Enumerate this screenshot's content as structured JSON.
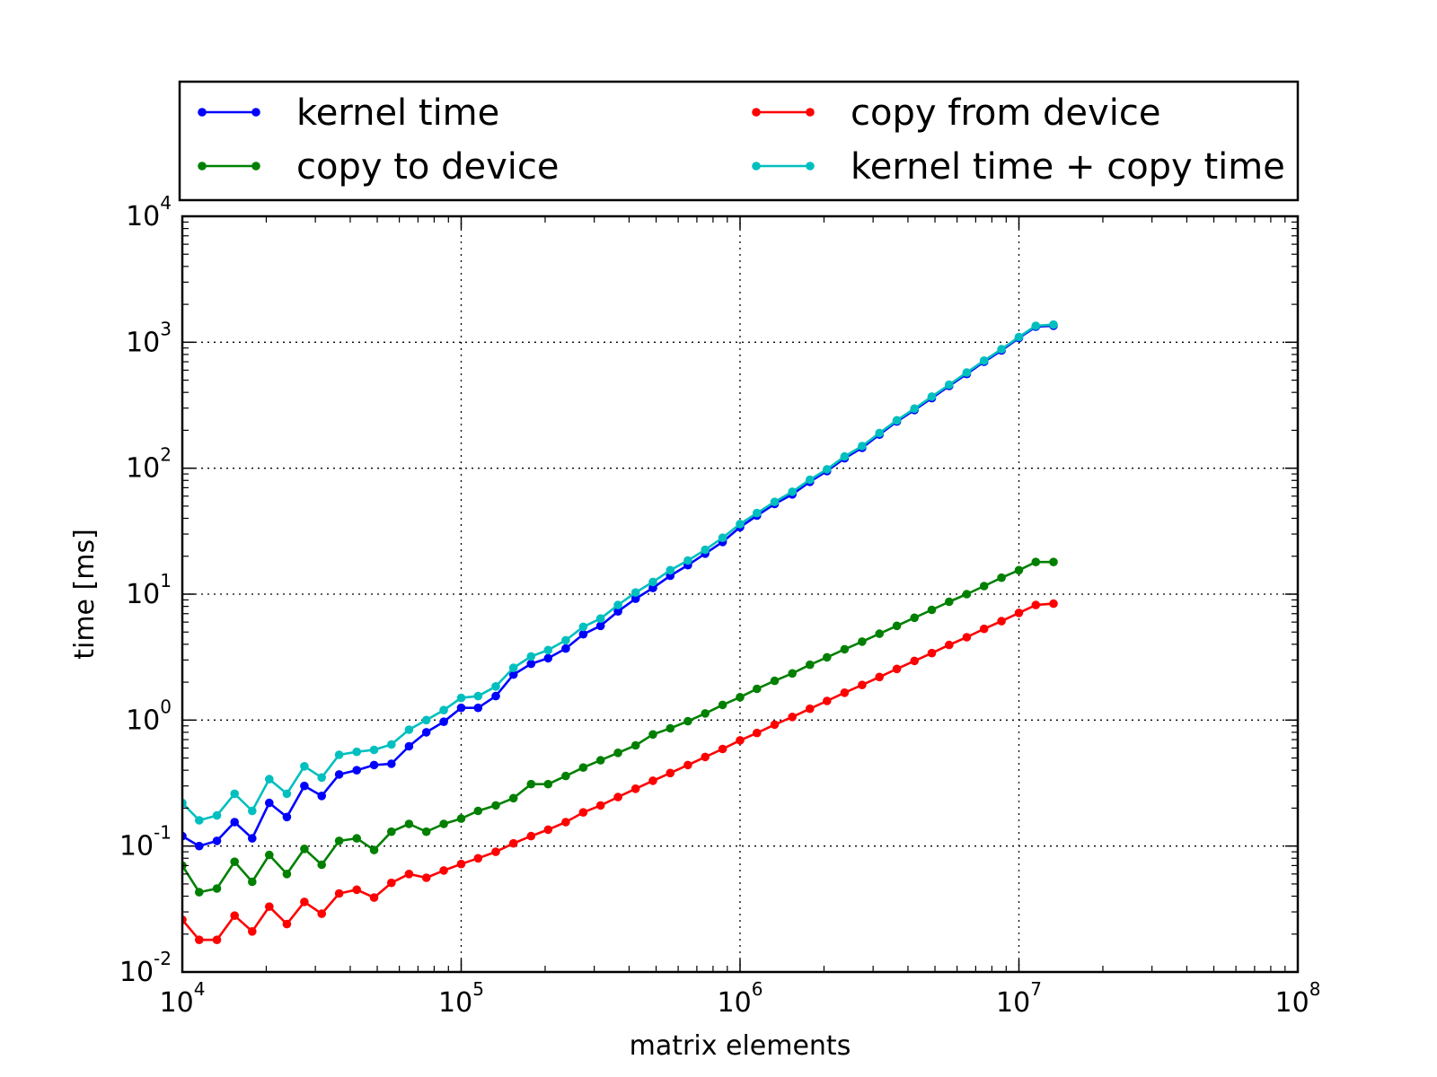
{
  "chart_data": {
    "type": "line",
    "title": "",
    "xlabel": "matrix elements",
    "ylabel": "time [ms]",
    "x_scale": "log",
    "y_scale": "log",
    "xlim": [
      10000,
      100000000
    ],
    "ylim": [
      0.01,
      10000
    ],
    "grid": true,
    "legend_position": "above plot, two columns",
    "x_ticks": [
      {
        "base": "10",
        "exp": "4"
      },
      {
        "base": "10",
        "exp": "5"
      },
      {
        "base": "10",
        "exp": "6"
      },
      {
        "base": "10",
        "exp": "7"
      },
      {
        "base": "10",
        "exp": "8"
      }
    ],
    "y_ticks": [
      {
        "base": "10",
        "exp": "-2"
      },
      {
        "base": "10",
        "exp": "-1"
      },
      {
        "base": "10",
        "exp": "0"
      },
      {
        "base": "10",
        "exp": "1"
      },
      {
        "base": "10",
        "exp": "2"
      },
      {
        "base": "10",
        "exp": "3"
      },
      {
        "base": "10",
        "exp": "4"
      }
    ],
    "x": [
      10000,
      11500,
      13300,
      15400,
      17800,
      20500,
      23700,
      27400,
      31600,
      36500,
      42200,
      48700,
      56200,
      65000,
      75000,
      86600,
      100000,
      115000,
      133000,
      154000,
      178000,
      205000,
      237000,
      274000,
      316000,
      365000,
      422000,
      487000,
      562000,
      650000,
      750000,
      866000,
      1000000,
      1150000,
      1330000,
      1540000,
      1780000,
      2050000,
      2370000,
      2740000,
      3160000,
      3650000,
      4220000,
      4870000,
      5620000,
      6500000,
      7500000,
      8660000,
      10000000,
      11500000,
      13300000
    ],
    "series": [
      {
        "name": "kernel time",
        "color": "#0000ff",
        "values": [
          0.12,
          0.1,
          0.11,
          0.155,
          0.115,
          0.22,
          0.17,
          0.3,
          0.25,
          0.37,
          0.4,
          0.44,
          0.45,
          0.62,
          0.8,
          0.97,
          1.25,
          1.25,
          1.55,
          2.3,
          2.8,
          3.1,
          3.7,
          4.8,
          5.6,
          7.3,
          9.2,
          11.2,
          14.0,
          17.0,
          21.0,
          26.0,
          34.0,
          42.0,
          52.0,
          62.0,
          78.0,
          95.0,
          120.0,
          145.0,
          185.0,
          235.0,
          290.0,
          360.0,
          450.0,
          560.0,
          700.0,
          860.0,
          1080.0,
          1330.0,
          1350.0
        ]
      },
      {
        "name": "copy to device",
        "color": "#008000",
        "values": [
          0.07,
          0.043,
          0.046,
          0.075,
          0.052,
          0.085,
          0.06,
          0.095,
          0.071,
          0.11,
          0.115,
          0.093,
          0.13,
          0.15,
          0.13,
          0.15,
          0.165,
          0.19,
          0.21,
          0.24,
          0.31,
          0.31,
          0.36,
          0.42,
          0.48,
          0.55,
          0.63,
          0.77,
          0.86,
          0.98,
          1.13,
          1.32,
          1.52,
          1.77,
          2.05,
          2.35,
          2.75,
          3.15,
          3.65,
          4.2,
          4.85,
          5.6,
          6.5,
          7.5,
          8.7,
          10.0,
          11.6,
          13.5,
          15.5,
          18.0,
          18.0
        ]
      },
      {
        "name": "copy from device",
        "color": "#ff0000",
        "values": [
          0.026,
          0.018,
          0.018,
          0.028,
          0.021,
          0.033,
          0.024,
          0.036,
          0.029,
          0.042,
          0.045,
          0.039,
          0.051,
          0.06,
          0.056,
          0.064,
          0.072,
          0.08,
          0.09,
          0.105,
          0.12,
          0.135,
          0.155,
          0.185,
          0.21,
          0.245,
          0.285,
          0.33,
          0.38,
          0.44,
          0.51,
          0.59,
          0.69,
          0.79,
          0.92,
          1.06,
          1.23,
          1.42,
          1.65,
          1.9,
          2.2,
          2.55,
          2.95,
          3.4,
          3.95,
          4.55,
          5.3,
          6.1,
          7.1,
          8.2,
          8.4
        ]
      },
      {
        "name": "kernel time + copy time",
        "color": "#00bfbf",
        "values": [
          0.22,
          0.16,
          0.175,
          0.26,
          0.19,
          0.34,
          0.26,
          0.43,
          0.35,
          0.53,
          0.56,
          0.58,
          0.64,
          0.84,
          1.0,
          1.2,
          1.5,
          1.55,
          1.85,
          2.6,
          3.2,
          3.6,
          4.3,
          5.5,
          6.4,
          8.2,
          10.3,
          12.5,
          15.5,
          18.5,
          22.5,
          28.0,
          36.0,
          44.0,
          54.0,
          65.0,
          81.0,
          98.0,
          124.0,
          150.0,
          190.0,
          240.0,
          297.0,
          370.0,
          460.0,
          575.0,
          715.0,
          880.0,
          1100.0,
          1350.0,
          1380.0
        ]
      }
    ]
  }
}
